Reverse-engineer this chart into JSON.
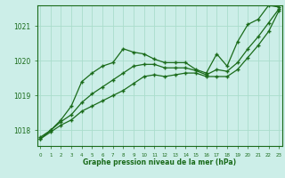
{
  "bg_color": "#cceee8",
  "grid_color": "#aaddcc",
  "line_color": "#1a6b1a",
  "x_labels": [
    "0",
    "1",
    "2",
    "3",
    "4",
    "5",
    "6",
    "7",
    "8",
    "9",
    "10",
    "11",
    "12",
    "13",
    "14",
    "15",
    "16",
    "17",
    "18",
    "19",
    "20",
    "21",
    "22",
    "23"
  ],
  "hours": [
    0,
    1,
    2,
    3,
    4,
    5,
    6,
    7,
    8,
    9,
    10,
    11,
    12,
    13,
    14,
    15,
    16,
    17,
    18,
    19,
    20,
    21,
    22,
    23
  ],
  "line_max": [
    1017.8,
    1018.0,
    1018.3,
    1018.7,
    1019.4,
    1019.65,
    1019.85,
    1019.95,
    1020.35,
    1020.25,
    1020.2,
    1020.05,
    1019.95,
    1019.95,
    1019.95,
    1019.75,
    1019.65,
    1020.2,
    1019.85,
    1020.55,
    1021.05,
    1021.2,
    1021.6,
    1021.55
  ],
  "line_mid": [
    1017.75,
    1018.0,
    1018.25,
    1018.45,
    1018.8,
    1019.05,
    1019.25,
    1019.45,
    1019.65,
    1019.85,
    1019.9,
    1019.9,
    1019.8,
    1019.8,
    1019.8,
    1019.72,
    1019.6,
    1019.75,
    1019.7,
    1019.95,
    1020.35,
    1020.7,
    1021.1,
    1021.5
  ],
  "line_low": [
    1017.75,
    1017.95,
    1018.15,
    1018.3,
    1018.55,
    1018.7,
    1018.85,
    1019.0,
    1019.15,
    1019.35,
    1019.55,
    1019.6,
    1019.55,
    1019.6,
    1019.65,
    1019.65,
    1019.55,
    1019.55,
    1019.55,
    1019.75,
    1020.1,
    1020.45,
    1020.85,
    1021.45
  ],
  "ylim_min": 1017.55,
  "ylim_max": 1021.6,
  "yticks": [
    1018,
    1019,
    1020,
    1021
  ],
  "xlabel": "Graphe pression niveau de la mer (hPa)"
}
